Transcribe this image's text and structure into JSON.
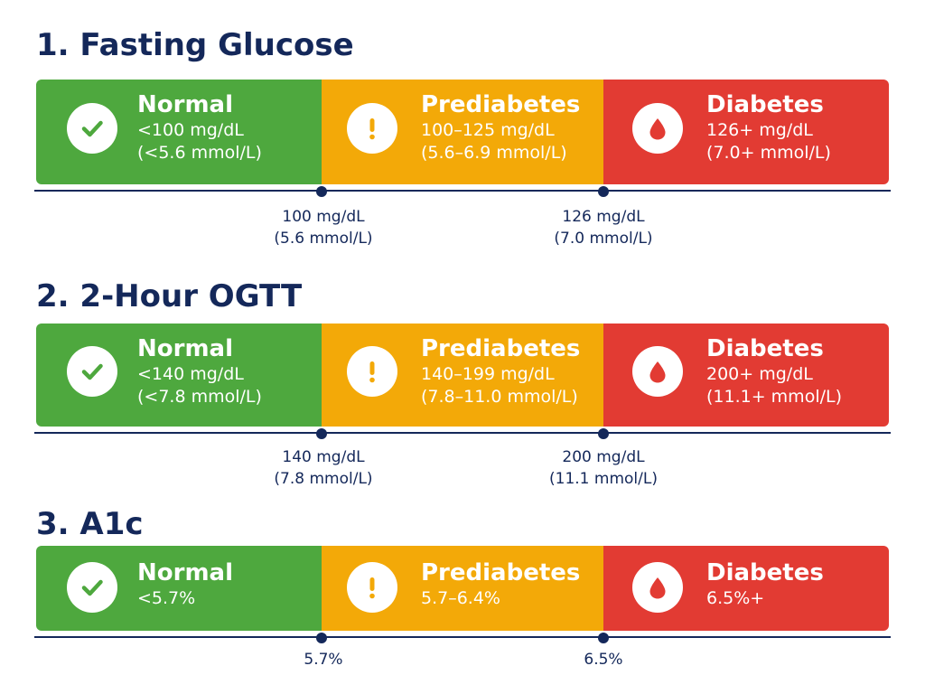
{
  "colors": {
    "normal": "#4ea83e",
    "prediabetes": "#f3a908",
    "diabetes": "#e23b33",
    "text_dark": "#14285a"
  },
  "sections": [
    {
      "title": "1. Fasting Glucose",
      "normal": {
        "label": "Normal",
        "range_line1": "<100 mg/dL",
        "range_line2": "(<5.6 mmol/L)",
        "icon": "checkmark-icon"
      },
      "prediabetes": {
        "label": "Prediabetes",
        "range_line1": "100–125 mg/dL",
        "range_line2": "(5.6–6.9 mmol/L)",
        "icon": "exclamation-icon"
      },
      "diabetes": {
        "label": "Diabetes",
        "range_line1": "126+ mg/dL",
        "range_line2": "(7.0+ mmol/L)",
        "icon": "blood-drop-icon"
      },
      "thresholds": [
        {
          "line1": "100 mg/dL",
          "line2": "(5.6 mmol/L)"
        },
        {
          "line1": "126 mg/dL",
          "line2": "(7.0 mmol/L)"
        }
      ]
    },
    {
      "title": "2. 2-Hour OGTT",
      "normal": {
        "label": "Normal",
        "range_line1": "<140 mg/dL",
        "range_line2": "(<7.8 mmol/L)",
        "icon": "checkmark-icon"
      },
      "prediabetes": {
        "label": "Prediabetes",
        "range_line1": "140–199 mg/dL",
        "range_line2": "(7.8–11.0 mmol/L)",
        "icon": "exclamation-icon"
      },
      "diabetes": {
        "label": "Diabetes",
        "range_line1": "200+ mg/dL",
        "range_line2": "(11.1+ mmol/L)",
        "icon": "blood-drop-icon"
      },
      "thresholds": [
        {
          "line1": "140 mg/dL",
          "line2": "(7.8 mmol/L)"
        },
        {
          "line1": "200 mg/dL",
          "line2": "(11.1 mmol/L)"
        }
      ]
    },
    {
      "title": "3. A1c",
      "normal": {
        "label": "Normal",
        "range_line1": "<5.7%",
        "icon": "checkmark-icon"
      },
      "prediabetes": {
        "label": "Prediabetes",
        "range_line1": "5.7–6.4%",
        "icon": "exclamation-icon"
      },
      "diabetes": {
        "label": "Diabetes",
        "range_line1": "6.5%+",
        "icon": "blood-drop-icon"
      },
      "thresholds": [
        {
          "line1": "5.7%"
        },
        {
          "line1": "6.5%"
        }
      ]
    }
  ]
}
